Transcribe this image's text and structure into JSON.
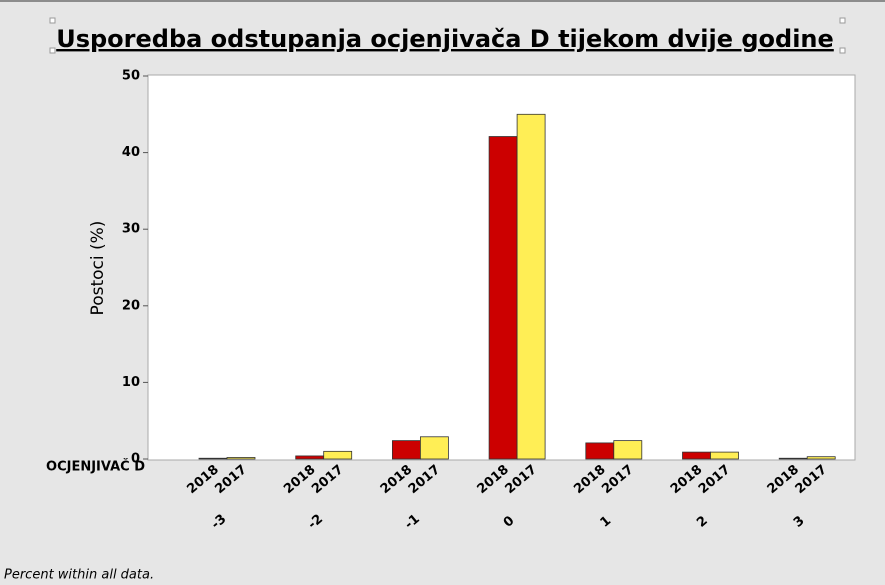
{
  "chart_data": {
    "type": "bar",
    "title": "Usporedba odstupanja ocjenjivača D tijekom dvije godine",
    "y_label": "Postoci (%)",
    "x_label": "OCJENJIVAČ D",
    "footnote": "Percent within all data.",
    "categories": [
      "-3",
      "-2",
      "-1",
      "0",
      "1",
      "2",
      "3"
    ],
    "series": [
      {
        "name": "2018",
        "color": "#cc0000",
        "values": [
          0.1,
          0.4,
          2.4,
          42.1,
          2.1,
          0.9,
          0.1
        ]
      },
      {
        "name": "2017",
        "color": "#ffee55",
        "values": [
          0.2,
          1.0,
          2.9,
          45.0,
          2.4,
          0.9,
          0.3
        ]
      }
    ],
    "ylim": [
      0,
      50
    ],
    "yticks": [
      0,
      10,
      20,
      30,
      40,
      50
    ],
    "grid": false
  }
}
